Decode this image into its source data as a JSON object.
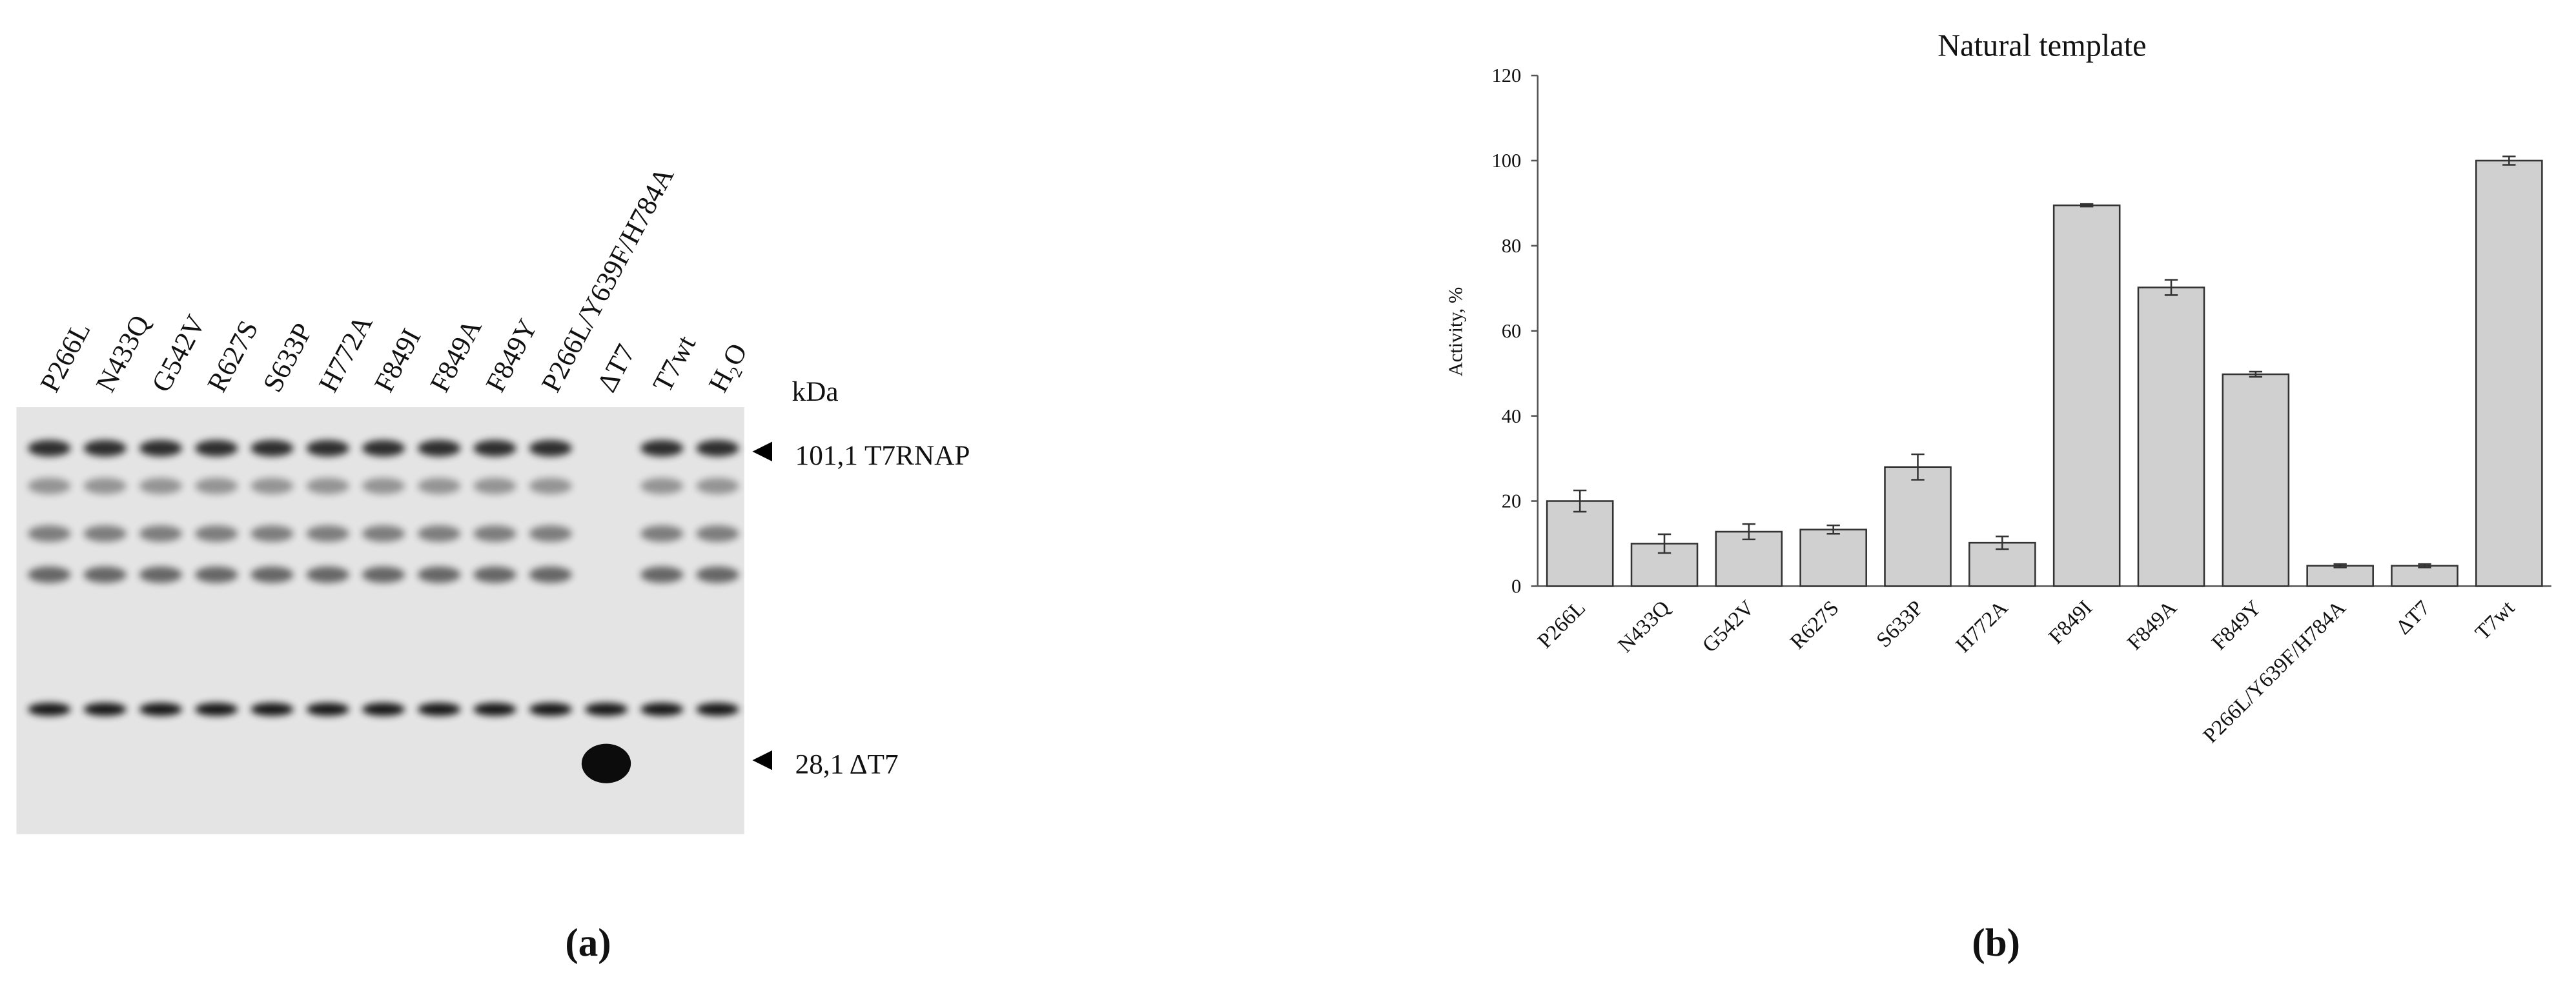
{
  "blot": {
    "lanes": [
      "P266L",
      "N433Q",
      "G542V",
      "R627S",
      "S633P",
      "H772A",
      "F849I",
      "F849A",
      "F849Y",
      "P266L/Y639F/H784A",
      "ΔT7",
      "T7wt",
      "H₂O"
    ],
    "unit": "kDa",
    "markers": [
      "101,1 T7RNAP",
      "28,1 ΔT7"
    ],
    "panel_label": "(a)"
  },
  "chart_data": {
    "type": "bar",
    "title": "Natural template",
    "y_label": "Activity, %",
    "categories": [
      "P266L",
      "N433Q",
      "G542V",
      "R627S",
      "S633P",
      "H772A",
      "F849I",
      "F849A",
      "F849Y",
      "P266L/Y639F/H784A",
      "ΔT7",
      "T7wt"
    ],
    "values": [
      20,
      10,
      12.8,
      13.3,
      28,
      10.2,
      89.5,
      70.2,
      49.8,
      4.8,
      4.8,
      100
    ],
    "errors": [
      2.5,
      2.2,
      1.8,
      1,
      3,
      1.5,
      0.3,
      1.8,
      0.6,
      0.4,
      0.4,
      1
    ],
    "color": "#d0d0d0",
    "ylim": [
      0,
      120
    ],
    "yticks": [
      0,
      20,
      40,
      60,
      80,
      100,
      120
    ],
    "grid": false,
    "panel_label": "(b)"
  }
}
